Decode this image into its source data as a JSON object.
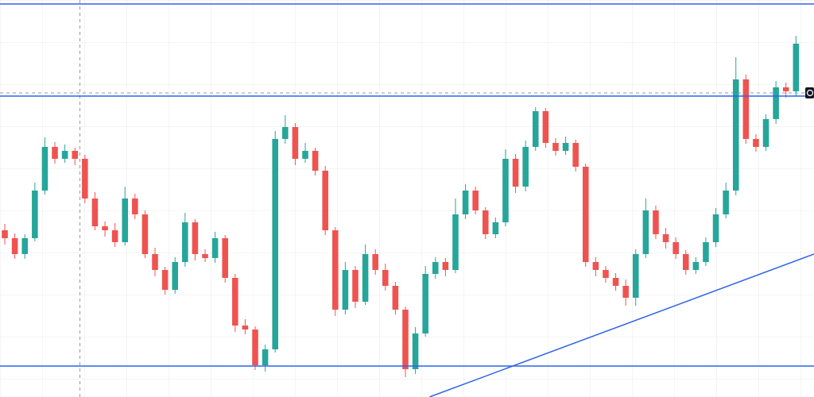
{
  "chart_data": {
    "type": "candlestick",
    "xlim": [
      -0.48,
      80.8
    ],
    "ylim": [
      0,
      500
    ],
    "up_color": "#26a69a",
    "down_color": "#ef5350",
    "line_color": "#2f63e8",
    "open": [
      210,
      200,
      180,
      200,
      260,
      315,
      300,
      310,
      300,
      250,
      215,
      210,
      195,
      250,
      230,
      180,
      160,
      135,
      170,
      220,
      180,
      175,
      200,
      150,
      90,
      85,
      40,
      60,
      325,
      340,
      300,
      310,
      285,
      210,
      110,
      160,
      120,
      180,
      160,
      140,
      110,
      35,
      80,
      155,
      170,
      160,
      230,
      260,
      235,
      205,
      220,
      300,
      265,
      315,
      360,
      320,
      310,
      320,
      290,
      170,
      160,
      150,
      140,
      125,
      180,
      235,
      205,
      195,
      180,
      160,
      170,
      195,
      230,
      260,
      400,
      325,
      315,
      350,
      390,
      385
    ],
    "high": [
      218,
      206,
      205,
      270,
      327,
      321,
      318,
      314,
      305,
      258,
      221,
      219,
      265,
      256,
      235,
      188,
      164,
      176,
      232,
      224,
      186,
      208,
      204,
      155,
      98,
      89,
      66,
      335,
      355,
      345,
      320,
      314,
      291,
      214,
      170,
      165,
      192,
      186,
      168,
      145,
      114,
      88,
      165,
      176,
      175,
      250,
      268,
      265,
      239,
      226,
      312,
      306,
      323,
      365,
      364,
      326,
      328,
      324,
      294,
      176,
      165,
      156,
      148,
      186,
      250,
      241,
      213,
      201,
      185,
      176,
      201,
      238,
      270,
      428,
      406,
      331,
      356,
      398,
      396,
      455
    ],
    "low": [
      192,
      174,
      174,
      196,
      255,
      294,
      295,
      292,
      244,
      210,
      202,
      189,
      191,
      224,
      175,
      152,
      129,
      130,
      164,
      172,
      170,
      169,
      144,
      82,
      79,
      34,
      32,
      56,
      319,
      292,
      295,
      279,
      204,
      102,
      104,
      112,
      116,
      154,
      134,
      104,
      25,
      29,
      76,
      149,
      152,
      156,
      224,
      230,
      199,
      200,
      215,
      257,
      259,
      310,
      314,
      304,
      305,
      284,
      164,
      152,
      144,
      134,
      115,
      115,
      175,
      199,
      187,
      174,
      154,
      155,
      165,
      189,
      225,
      254,
      319,
      309,
      310,
      344,
      377,
      379
    ],
    "close": [
      200,
      180,
      200,
      260,
      315,
      300,
      310,
      300,
      250,
      215,
      210,
      195,
      250,
      230,
      180,
      160,
      135,
      170,
      220,
      180,
      175,
      200,
      150,
      90,
      85,
      40,
      60,
      325,
      340,
      300,
      310,
      285,
      210,
      110,
      160,
      120,
      180,
      160,
      140,
      110,
      35,
      80,
      155,
      170,
      160,
      230,
      260,
      235,
      205,
      220,
      300,
      265,
      315,
      360,
      320,
      310,
      320,
      290,
      170,
      160,
      150,
      140,
      125,
      180,
      235,
      205,
      195,
      180,
      160,
      170,
      195,
      230,
      260,
      400,
      325,
      315,
      350,
      390,
      385,
      445
    ],
    "hlines": [
      495,
      379,
      39
    ],
    "trendline": {
      "x": [
        42.4,
        80.8
      ],
      "y": [
        0,
        180
      ]
    },
    "crosshair": {
      "x": 7.5,
      "y": 383
    }
  }
}
